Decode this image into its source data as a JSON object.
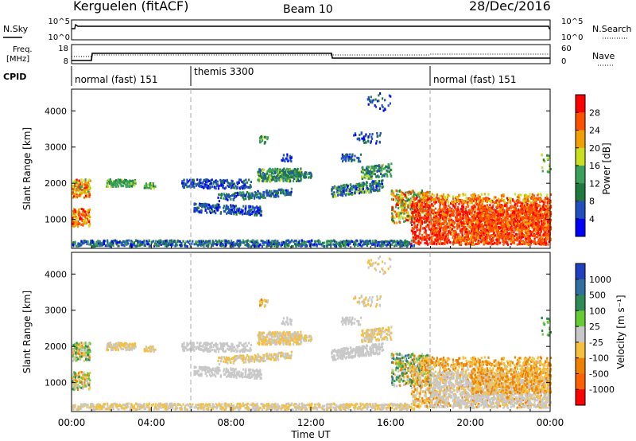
{
  "header": {
    "station": "Kerguelen (fitACF)",
    "beam": "Beam 10",
    "date": "28/Dec/2016"
  },
  "nsky_panel": {
    "left_label": "N.Sky",
    "left_ticks": [
      "10^5",
      "10^0"
    ],
    "right_ticks": [
      "10^5",
      "10^0"
    ],
    "right_label": "N.Search",
    "right_legend_style": "dotted"
  },
  "freq_panel": {
    "left_label_line1": "Freq.",
    "left_label_line2": "[MHz]",
    "left_ticks": [
      18,
      8
    ],
    "right_ticks": [
      60,
      0
    ],
    "right_label": "Nave",
    "right_legend_style": "dotted"
  },
  "cpid_panel": {
    "label": "CPID",
    "segments": [
      {
        "label": "normal (fast) 151",
        "start_hour": 0
      },
      {
        "label": "themis 3300",
        "start_hour": 6
      },
      {
        "label": "normal (fast) 151",
        "start_hour": 18
      }
    ]
  },
  "chart_data": [
    {
      "type": "heatmap",
      "name": "power",
      "ylabel": "Slant Range [km]",
      "yticks": [
        1000,
        2000,
        3000,
        4000
      ],
      "ylim": [
        200,
        4600
      ],
      "xlim_hours": [
        0,
        24
      ],
      "colorbar": {
        "label": "Power [dB]",
        "tick_labels": [
          "4",
          "8",
          "12",
          "16",
          "20",
          "24",
          "28"
        ],
        "colors": [
          "#0000ff",
          "#2050c0",
          "#1f7a40",
          "#3aa05a",
          "#c8e020",
          "#f0a000",
          "#ff5000",
          "#ff0000"
        ]
      }
    },
    {
      "type": "heatmap",
      "name": "velocity",
      "ylabel": "Slant Range [km]",
      "yticks": [
        1000,
        2000,
        3000,
        4000
      ],
      "ylim": [
        200,
        4600
      ],
      "xlim_hours": [
        0,
        24
      ],
      "xlabel": "Time UT",
      "xtick_labels": [
        "00:00",
        "04:00",
        "08:00",
        "12:00",
        "16:00",
        "20:00",
        "00:00"
      ],
      "colorbar": {
        "label": "Velocity [m s⁻¹]",
        "tick_labels": [
          "1000",
          "500",
          "100",
          "25",
          "-25",
          "-100",
          "-500",
          "-1000"
        ],
        "colors": [
          "#2040c0",
          "#2f70a0",
          "#2e8b57",
          "#66cc33",
          "#c8c8c8",
          "#f5c040",
          "#f08000",
          "#ff6000",
          "#ff0000"
        ]
      }
    }
  ]
}
